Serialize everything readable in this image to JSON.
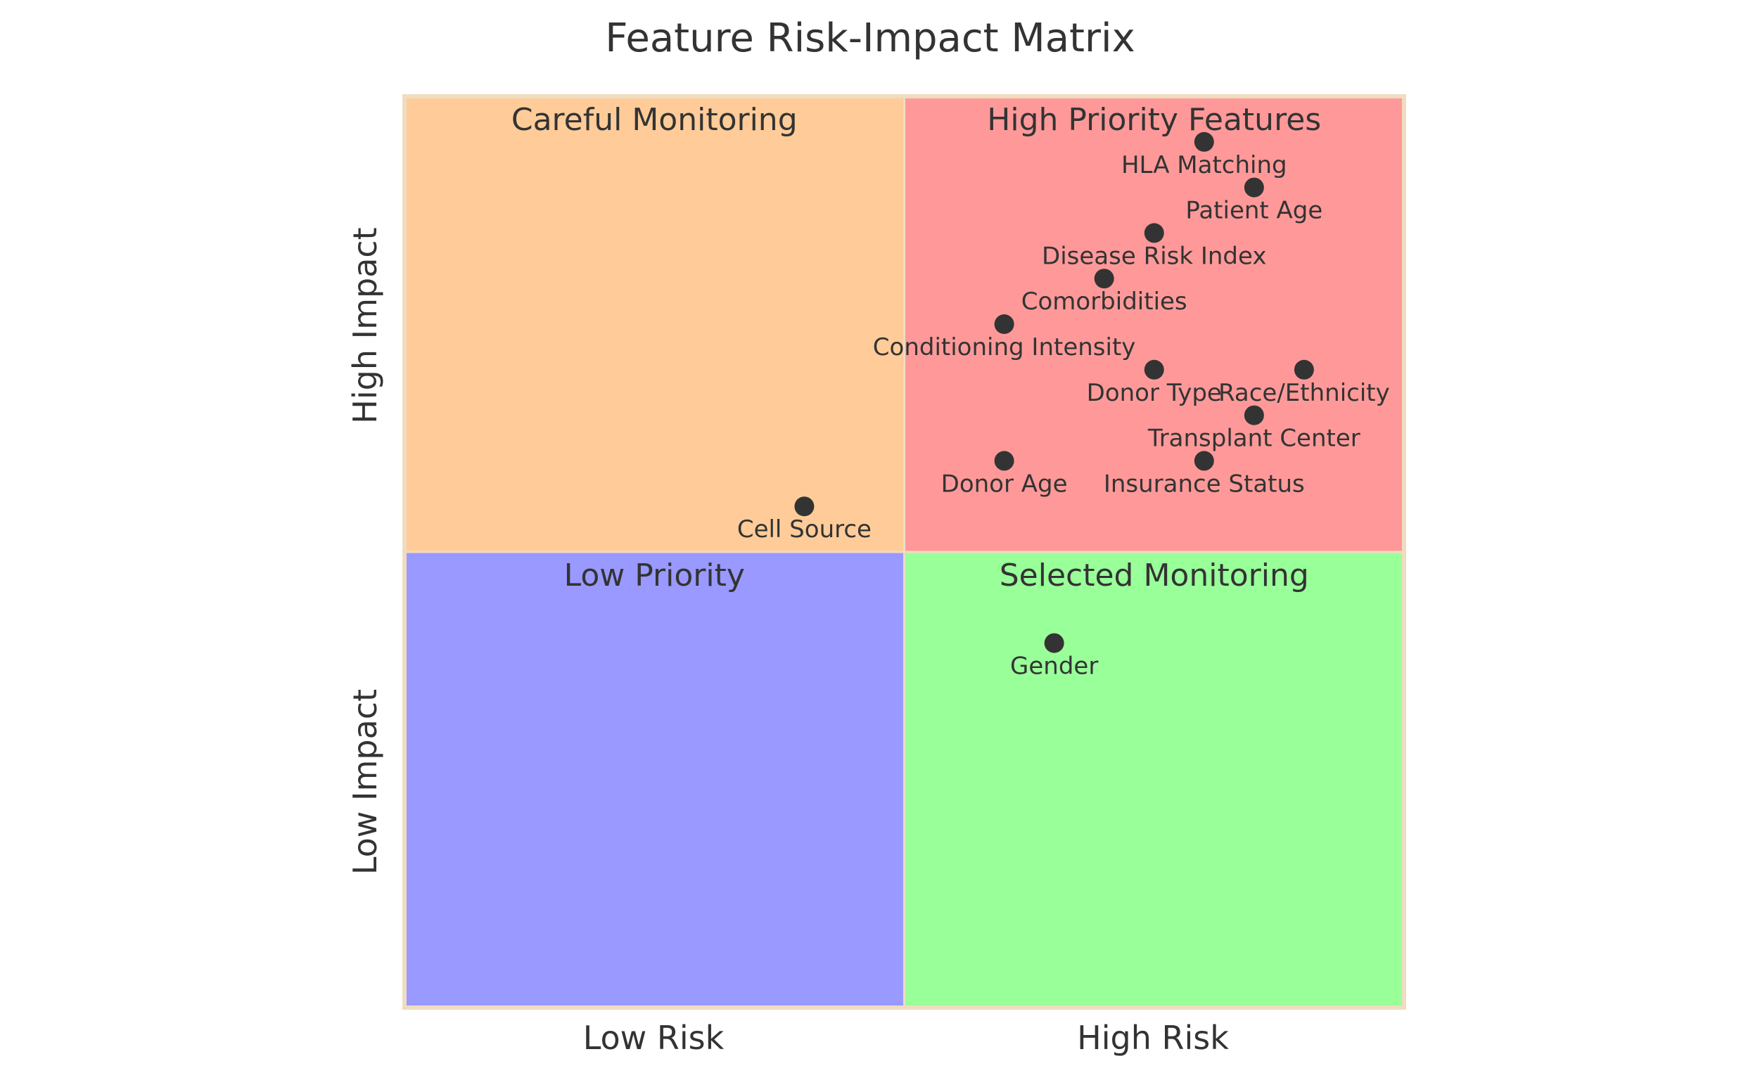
{
  "chart_data": {
    "type": "quadrant",
    "title": "Feature Risk-Impact Matrix",
    "x_axis": {
      "low_label": "Low Risk",
      "high_label": "High Risk"
    },
    "y_axis": {
      "low_label": "Low Impact",
      "high_label": "High Impact"
    },
    "xlim": [
      0,
      1
    ],
    "ylim": [
      0,
      1
    ],
    "quadrants": [
      {
        "id": "quadrant-1",
        "label": "High Priority Features",
        "position": "top-right",
        "color": "#ff9999"
      },
      {
        "id": "quadrant-2",
        "label": "Careful Monitoring",
        "position": "top-left",
        "color": "#ffcc99"
      },
      {
        "id": "quadrant-3",
        "label": "Low Priority",
        "position": "bottom-left",
        "color": "#9999ff"
      },
      {
        "id": "quadrant-4",
        "label": "Selected Monitoring",
        "position": "bottom-right",
        "color": "#99ff99"
      }
    ],
    "border_color": "#f0dcc0",
    "point_color": "#333333",
    "points": [
      {
        "label": "HLA Matching",
        "x": 0.8,
        "y": 0.95
      },
      {
        "label": "Patient Age",
        "x": 0.85,
        "y": 0.9
      },
      {
        "label": "Disease Risk Index",
        "x": 0.75,
        "y": 0.85
      },
      {
        "label": "Comorbidities",
        "x": 0.7,
        "y": 0.8
      },
      {
        "label": "Conditioning Intensity",
        "x": 0.6,
        "y": 0.75
      },
      {
        "label": "Donor Type",
        "x": 0.75,
        "y": 0.7
      },
      {
        "label": "Race/Ethnicity",
        "x": 0.9,
        "y": 0.7
      },
      {
        "label": "Transplant Center",
        "x": 0.85,
        "y": 0.65
      },
      {
        "label": "Donor Age",
        "x": 0.6,
        "y": 0.6
      },
      {
        "label": "Insurance Status",
        "x": 0.8,
        "y": 0.6
      },
      {
        "label": "Cell Source",
        "x": 0.4,
        "y": 0.55
      },
      {
        "label": "Gender",
        "x": 0.65,
        "y": 0.4
      }
    ]
  }
}
